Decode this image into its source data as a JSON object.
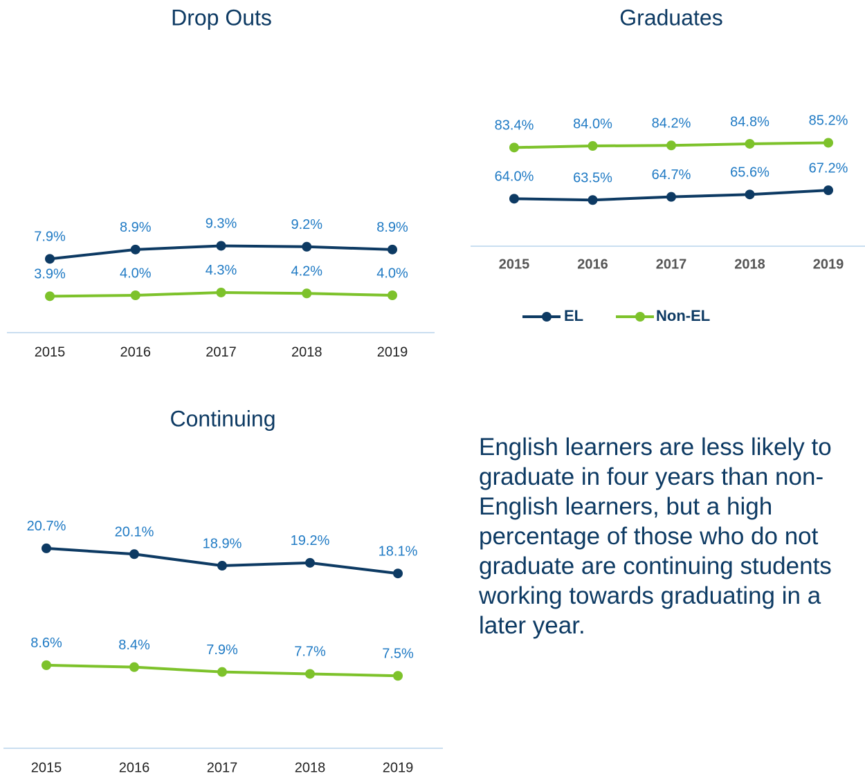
{
  "chart_data": [
    {
      "type": "line",
      "title": "Drop Outs",
      "categories": [
        "2015",
        "2016",
        "2017",
        "2018",
        "2019"
      ],
      "ylim": [
        0,
        30
      ],
      "series": [
        {
          "name": "EL",
          "color": "#0d3a63",
          "values": [
            7.9,
            8.9,
            9.3,
            9.2,
            8.9
          ],
          "value_labels": [
            "7.9%",
            "8.9%",
            "9.3%",
            "9.2%",
            "8.9%"
          ]
        },
        {
          "name": "Non-EL",
          "color": "#7dc22b",
          "values": [
            3.9,
            4.0,
            4.3,
            4.2,
            4.0
          ],
          "value_labels": [
            "3.9%",
            "4.0%",
            "4.3%",
            "4.2%",
            "4.0%"
          ]
        }
      ]
    },
    {
      "type": "line",
      "title": "Graduates",
      "categories": [
        "2015",
        "2016",
        "2017",
        "2018",
        "2019"
      ],
      "ylim": [
        46,
        100
      ],
      "series": [
        {
          "name": "EL",
          "color": "#0d3a63",
          "values": [
            64.0,
            63.5,
            64.7,
            65.6,
            67.2
          ],
          "value_labels": [
            "64.0%",
            "63.5%",
            "64.7%",
            "65.6%",
            "67.2%"
          ]
        },
        {
          "name": "Non-EL",
          "color": "#7dc22b",
          "values": [
            83.4,
            84.0,
            84.2,
            84.8,
            85.2
          ],
          "value_labels": [
            "83.4%",
            "84.0%",
            "84.2%",
            "84.8%",
            "85.2%"
          ]
        }
      ]
    },
    {
      "type": "line",
      "title": "Continuing",
      "categories": [
        "2015",
        "2016",
        "2017",
        "2018",
        "2019"
      ],
      "ylim": [
        0,
        30
      ],
      "series": [
        {
          "name": "EL",
          "color": "#0d3a63",
          "values": [
            20.7,
            20.1,
            18.9,
            19.2,
            18.1
          ],
          "value_labels": [
            "20.7%",
            "20.1%",
            "18.9%",
            "19.2%",
            "18.1%"
          ]
        },
        {
          "name": "Non-EL",
          "color": "#7dc22b",
          "values": [
            8.6,
            8.4,
            7.9,
            7.7,
            7.5
          ],
          "value_labels": [
            "8.6%",
            "8.4%",
            "7.9%",
            "7.7%",
            "7.5%"
          ]
        }
      ]
    }
  ],
  "text": "English learners are less likely to graduate in four years than non-English learners, but a high percentage of those who do not graduate are continuing students working towards graduating in a later year."
}
